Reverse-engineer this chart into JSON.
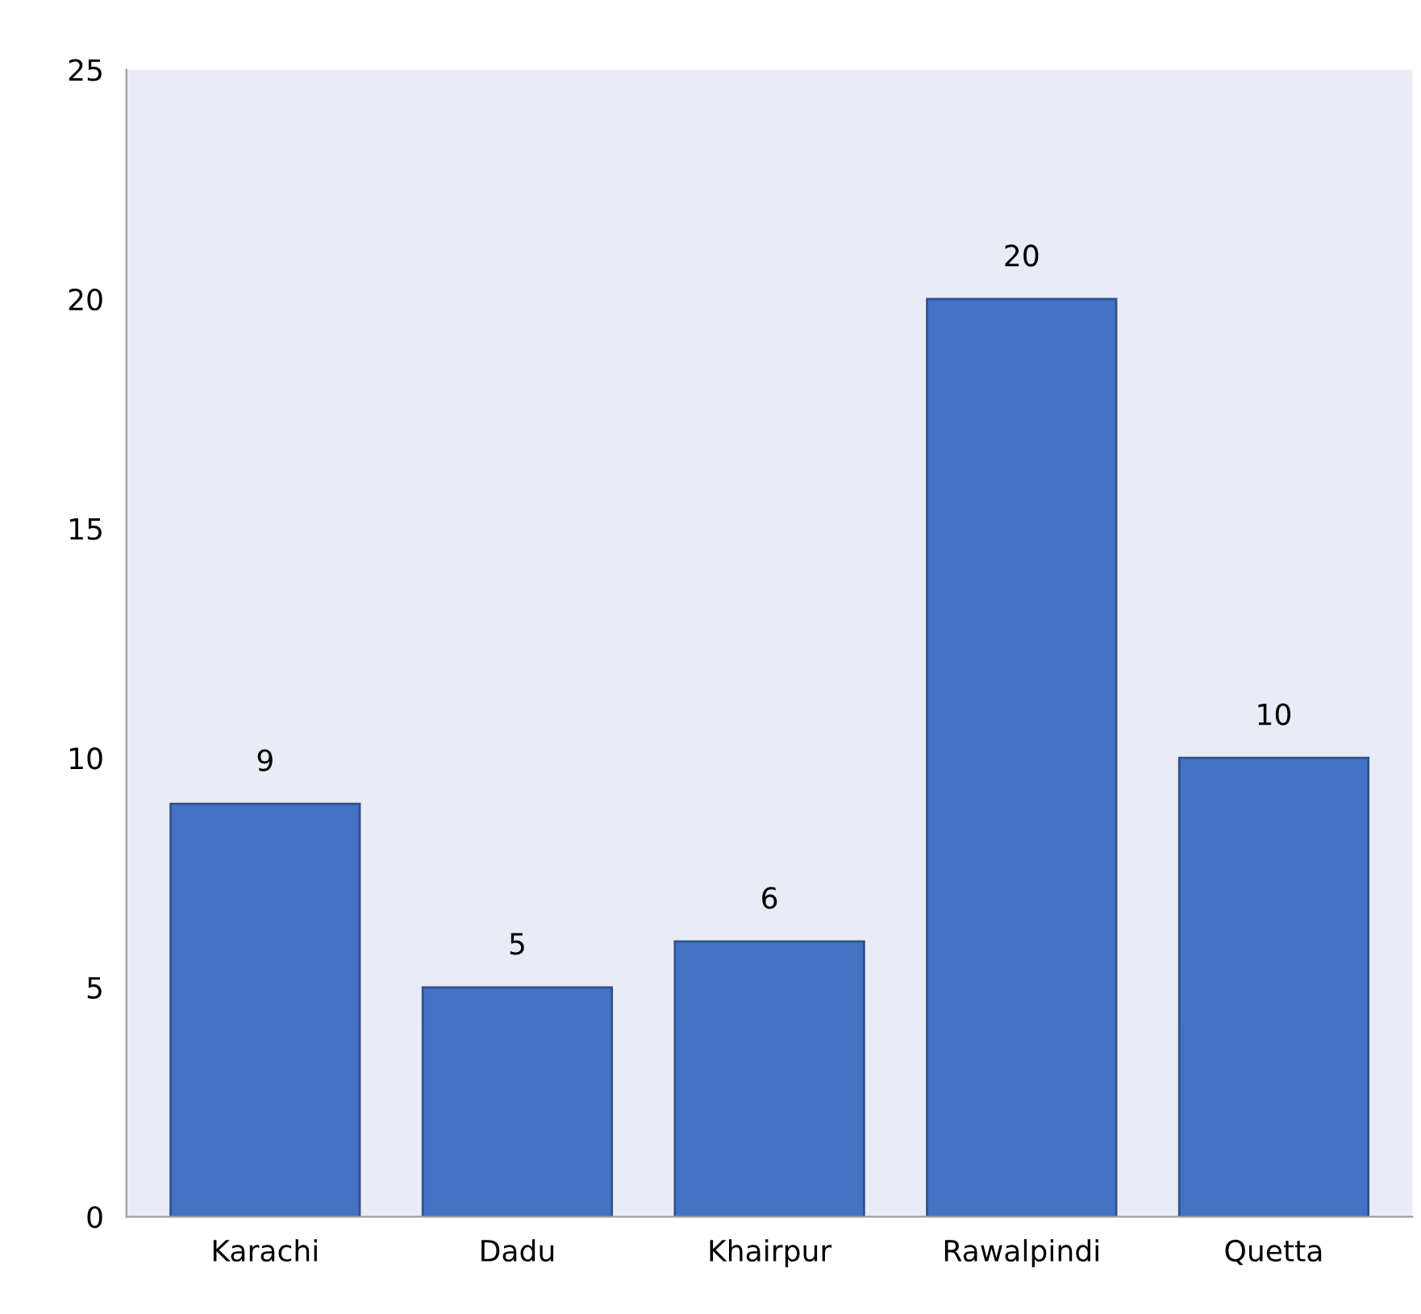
{
  "chart_data": {
    "type": "bar",
    "categories": [
      "Karachi",
      "Dadu",
      "Khairpur",
      "Rawalpindi",
      "Quetta"
    ],
    "values": [
      9,
      5,
      6,
      20,
      10
    ],
    "color": "#4472c4",
    "ylim": [
      0,
      25
    ],
    "yticks": [
      0,
      5,
      10,
      15,
      20,
      25
    ],
    "data_labels": true,
    "grid": false,
    "legend": false
  }
}
